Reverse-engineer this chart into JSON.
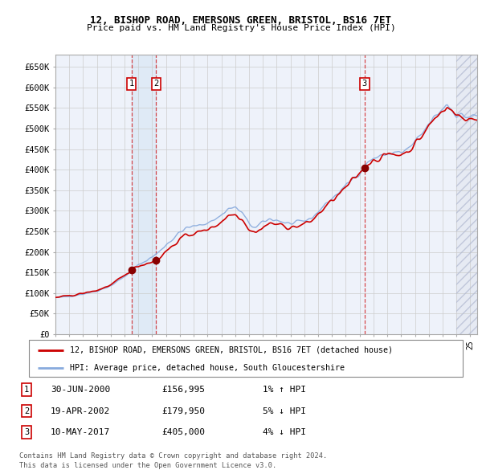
{
  "title": "12, BISHOP ROAD, EMERSONS GREEN, BRISTOL, BS16 7ET",
  "subtitle": "Price paid vs. HM Land Registry's House Price Index (HPI)",
  "ylabel_ticks": [
    "£0",
    "£50K",
    "£100K",
    "£150K",
    "£200K",
    "£250K",
    "£300K",
    "£350K",
    "£400K",
    "£450K",
    "£500K",
    "£550K",
    "£600K",
    "£650K"
  ],
  "ytick_values": [
    0,
    50000,
    100000,
    150000,
    200000,
    250000,
    300000,
    350000,
    400000,
    450000,
    500000,
    550000,
    600000,
    650000
  ],
  "xlim_start": 1995.0,
  "xlim_end": 2025.5,
  "ylim_min": 0,
  "ylim_max": 680000,
  "sale_color": "#cc0000",
  "hpi_color": "#88aadd",
  "highlight_color": "#dce8f5",
  "transactions": [
    {
      "id": 1,
      "date_num": 2000.5,
      "price": 156995,
      "label": "1"
    },
    {
      "id": 2,
      "date_num": 2002.29,
      "price": 179950,
      "label": "2"
    },
    {
      "id": 3,
      "date_num": 2017.36,
      "price": 405000,
      "label": "3"
    }
  ],
  "transaction_info": [
    {
      "num": 1,
      "date": "30-JUN-2000",
      "price": "£156,995",
      "hpi_change": "1% ↑ HPI"
    },
    {
      "num": 2,
      "date": "19-APR-2002",
      "price": "£179,950",
      "hpi_change": "5% ↓ HPI"
    },
    {
      "num": 3,
      "date": "10-MAY-2017",
      "price": "£405,000",
      "hpi_change": "4% ↓ HPI"
    }
  ],
  "legend_entries": [
    "12, BISHOP ROAD, EMERSONS GREEN, BRISTOL, BS16 7ET (detached house)",
    "HPI: Average price, detached house, South Gloucestershire"
  ],
  "footer_line1": "Contains HM Land Registry data © Crown copyright and database right 2024.",
  "footer_line2": "This data is licensed under the Open Government Licence v3.0.",
  "grid_color": "#cccccc",
  "background_color": "#ffffff",
  "plot_bg_color": "#eef2fa",
  "hatch_color": "#aaaacc"
}
